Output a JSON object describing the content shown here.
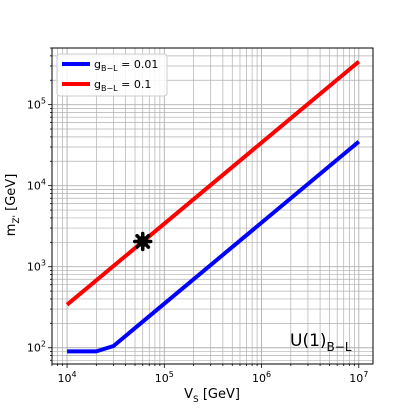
{
  "chart_data": {
    "type": "line",
    "title": "",
    "xlabel": "V_S [GeV]",
    "ylabel": "m_Z' [GeV]",
    "xscale": "log",
    "yscale": "log",
    "xlim": [
      7000,
      14000000
    ],
    "ylim": [
      63,
      500000
    ],
    "grid": true,
    "legend_position": "top-left",
    "x_tick_labels": [
      {
        "base": "10",
        "exp": "4",
        "value": 10000
      },
      {
        "base": "10",
        "exp": "5",
        "value": 100000
      },
      {
        "base": "10",
        "exp": "6",
        "value": 1000000
      },
      {
        "base": "10",
        "exp": "7",
        "value": 10000000
      }
    ],
    "y_tick_labels": [
      {
        "base": "10",
        "exp": "2",
        "value": 100
      },
      {
        "base": "10",
        "exp": "3",
        "value": 1000
      },
      {
        "base": "10",
        "exp": "4",
        "value": 10000
      },
      {
        "base": "10",
        "exp": "5",
        "value": 100000
      }
    ],
    "series": [
      {
        "name": "g_{B-L} = 0.01",
        "legend_label": "g_B−L = 0.01",
        "color": "#0000ff",
        "x": [
          10000,
          20000,
          30000,
          10000000
        ],
        "y": [
          90,
          90,
          105,
          35000
        ]
      },
      {
        "name": "g_{B-L} = 0.1",
        "legend_label": "g_B−L = 0.1",
        "color": "#ff0000",
        "x": [
          10000,
          10000000
        ],
        "y": [
          340,
          340000
        ]
      }
    ],
    "markers": [
      {
        "x": 60000,
        "y": 2050,
        "shape": "star",
        "color": "#000000"
      }
    ],
    "annotation": "U(1)_{B-L}"
  }
}
